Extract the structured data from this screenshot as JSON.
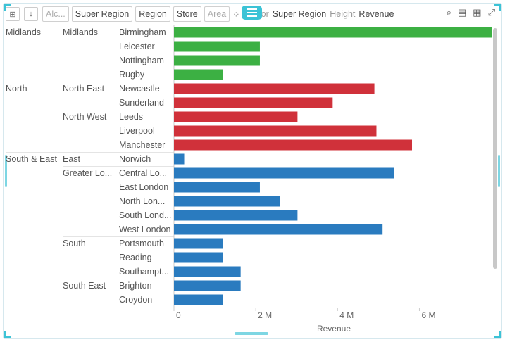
{
  "toolbar": {
    "chips": [
      {
        "label": "Alc...",
        "dim": true
      },
      {
        "label": "Super Region",
        "dim": false
      },
      {
        "label": "Region",
        "dim": false
      },
      {
        "label": "Store",
        "dim": false
      },
      {
        "label": "Area",
        "dim": true
      }
    ],
    "color_label": "or",
    "color_field": "Super Region",
    "height_label": "Height",
    "height_field": "Revenue",
    "icons": [
      "search-icon",
      "excel-icon",
      "table-icon",
      "expand-icon"
    ]
  },
  "colors": {
    "Midlands": "#3cb043",
    "North": "#d0313a",
    "South & East": "#2a7bbf",
    "accent": "#3cc3d6"
  },
  "chart_data": {
    "type": "bar",
    "orientation": "horizontal",
    "xlabel": "Revenue",
    "xlim": [
      0,
      7800000
    ],
    "ticks": [
      {
        "value": 0,
        "label": "0"
      },
      {
        "value": 2000000,
        "label": "2 M"
      },
      {
        "value": 4000000,
        "label": "4 M"
      },
      {
        "value": 6000000,
        "label": "6 M"
      }
    ],
    "rows": [
      {
        "super_region": "Midlands",
        "region": "Midlands",
        "store": "Birmingham",
        "value": 7780000
      },
      {
        "super_region": "",
        "region": "",
        "store": "Leicester",
        "value": 2100000
      },
      {
        "super_region": "",
        "region": "",
        "store": "Nottingham",
        "value": 2100000
      },
      {
        "super_region": "",
        "region": "",
        "store": "Rugby",
        "value": 1200000
      },
      {
        "super_region": "North",
        "region": "North East",
        "store": "Newcastle",
        "value": 4900000
      },
      {
        "super_region": "",
        "region": "",
        "store": "Sunderland",
        "value": 3880000
      },
      {
        "super_region": "",
        "region": "North West",
        "store": "Leeds",
        "value": 3020000
      },
      {
        "super_region": "",
        "region": "",
        "store": "Liverpool",
        "value": 4950000
      },
      {
        "super_region": "",
        "region": "",
        "store": "Manchester",
        "value": 5820000
      },
      {
        "super_region": "South & East",
        "region": "East",
        "store": "Norwich",
        "value": 250000
      },
      {
        "super_region": "",
        "region": "Greater Lo...",
        "store": "Central Lo...",
        "value": 5380000
      },
      {
        "super_region": "",
        "region": "",
        "store": "East London",
        "value": 2100000
      },
      {
        "super_region": "",
        "region": "",
        "store": "North Lon...",
        "value": 2600000
      },
      {
        "super_region": "",
        "region": "",
        "store": "South Lond...",
        "value": 3020000
      },
      {
        "super_region": "",
        "region": "",
        "store": "West London",
        "value": 5100000
      },
      {
        "super_region": "",
        "region": "South",
        "store": "Portsmouth",
        "value": 1200000
      },
      {
        "super_region": "",
        "region": "",
        "store": "Reading",
        "value": 1200000
      },
      {
        "super_region": "",
        "region": "",
        "store": "Southampt...",
        "value": 1630000
      },
      {
        "super_region": "",
        "region": "South East",
        "store": "Brighton",
        "value": 1630000
      },
      {
        "super_region": "",
        "region": "",
        "store": "Croydon",
        "value": 1200000
      }
    ],
    "group_of_row": [
      "Midlands",
      "Midlands",
      "Midlands",
      "Midlands",
      "North",
      "North",
      "North",
      "North",
      "North",
      "South & East",
      "South & East",
      "South & East",
      "South & East",
      "South & East",
      "South & East",
      "South & East",
      "South & East",
      "South & East",
      "South & East",
      "South & East"
    ]
  }
}
